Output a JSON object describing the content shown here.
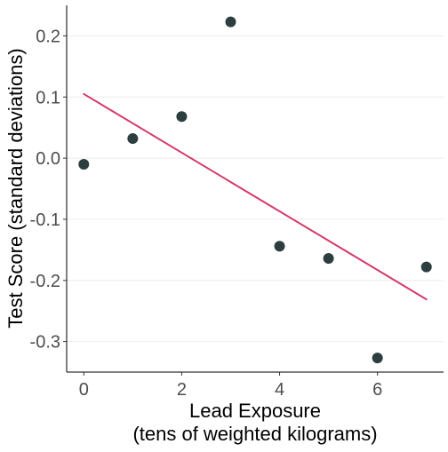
{
  "chart_data": {
    "type": "scatter",
    "xlabel_line1": "Lead Exposure",
    "xlabel_line2": "(tens of weighted kilograms)",
    "ylabel": "Test Score (standard deviations)",
    "xlim": [
      -0.35,
      7.35
    ],
    "ylim": [
      -0.35,
      0.25
    ],
    "x_ticks": [
      0,
      2,
      4,
      6
    ],
    "y_ticks": [
      -0.3,
      -0.2,
      -0.1,
      0.0,
      0.1,
      0.2
    ],
    "x_tick_labels": [
      "0",
      "2",
      "4",
      "6"
    ],
    "y_tick_labels": [
      "-0.3",
      "-0.2",
      "-0.1",
      "0.0",
      "0.1",
      "0.2"
    ],
    "grid": "horizontal",
    "points": [
      {
        "x": 0,
        "y": -0.01
      },
      {
        "x": 1,
        "y": 0.032
      },
      {
        "x": 2,
        "y": 0.068
      },
      {
        "x": 3,
        "y": 0.223
      },
      {
        "x": 4,
        "y": -0.144
      },
      {
        "x": 5,
        "y": -0.164
      },
      {
        "x": 6,
        "y": -0.327
      },
      {
        "x": 7,
        "y": -0.178
      }
    ],
    "fit_line": {
      "x": [
        0,
        7
      ],
      "y": [
        0.105,
        -0.231
      ]
    },
    "point_color": "#2c3e3f",
    "line_color": "#d63a6a",
    "grid_color": "#ebebeb"
  }
}
